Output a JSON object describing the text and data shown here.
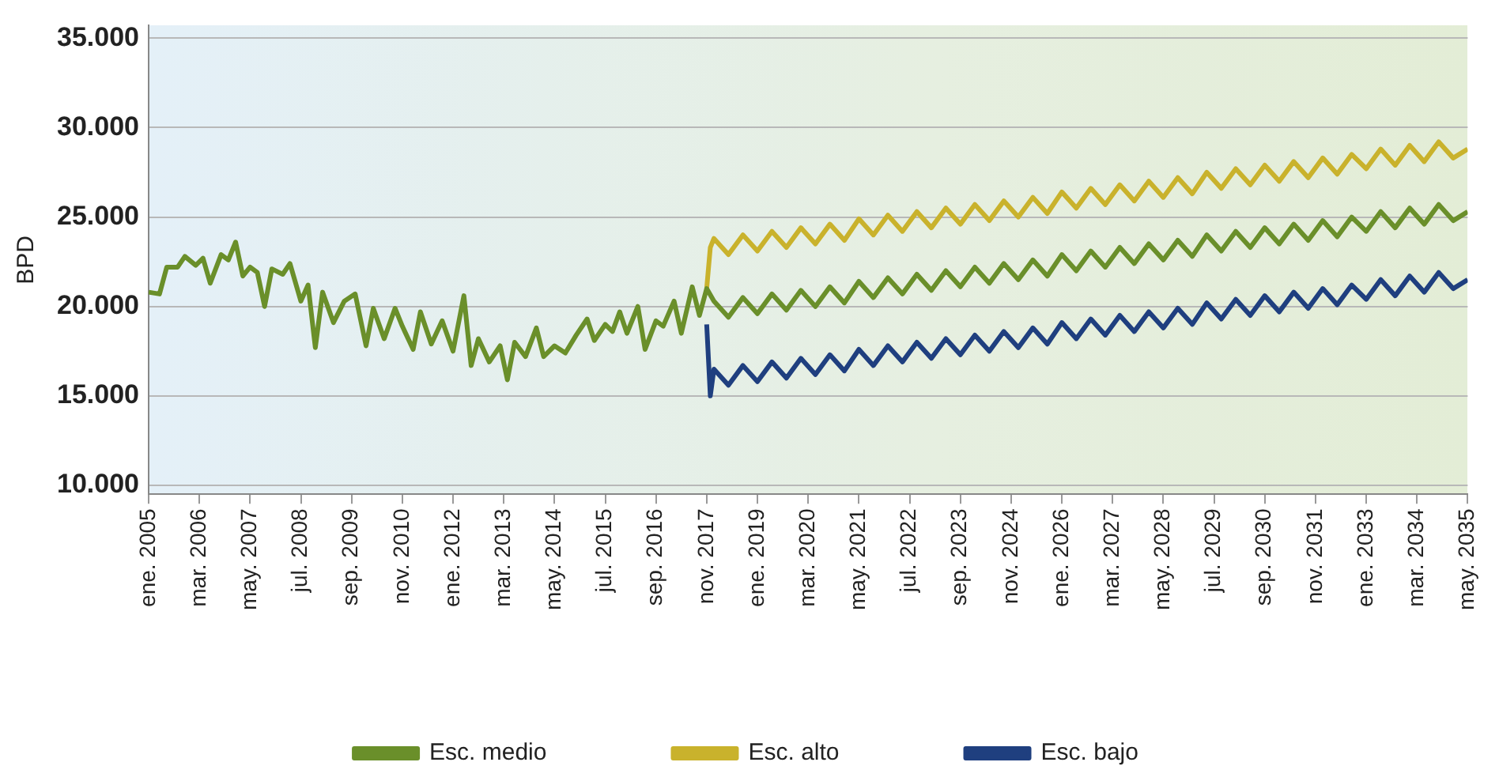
{
  "chart_data": {
    "type": "line",
    "ylabel": "BPD",
    "xlim": [
      "2005-01",
      "2035-05"
    ],
    "ylim": [
      9500,
      35700
    ],
    "yticks": [
      {
        "value": 10000,
        "label": "10.000"
      },
      {
        "value": 15000,
        "label": "15.000"
      },
      {
        "value": 20000,
        "label": "20.000"
      },
      {
        "value": 25000,
        "label": "25.000"
      },
      {
        "value": 30000,
        "label": "30.000"
      },
      {
        "value": 35000,
        "label": "35.000"
      }
    ],
    "xticks": [
      {
        "value": "2005-01",
        "label": "ene. 2005"
      },
      {
        "value": "2006-03",
        "label": "mar. 2006"
      },
      {
        "value": "2007-05",
        "label": "may. 2007"
      },
      {
        "value": "2008-07",
        "label": "jul. 2008"
      },
      {
        "value": "2009-09",
        "label": "sep. 2009"
      },
      {
        "value": "2010-11",
        "label": "nov. 2010"
      },
      {
        "value": "2012-01",
        "label": "ene. 2012"
      },
      {
        "value": "2013-03",
        "label": "mar. 2013"
      },
      {
        "value": "2014-05",
        "label": "may. 2014"
      },
      {
        "value": "2015-07",
        "label": "jul. 2015"
      },
      {
        "value": "2016-09",
        "label": "sep. 2016"
      },
      {
        "value": "2017-11",
        "label": "nov. 2017"
      },
      {
        "value": "2019-01",
        "label": "ene. 2019"
      },
      {
        "value": "2020-03",
        "label": "mar. 2020"
      },
      {
        "value": "2021-05",
        "label": "may. 2021"
      },
      {
        "value": "2022-07",
        "label": "jul. 2022"
      },
      {
        "value": "2023-09",
        "label": "sep. 2023"
      },
      {
        "value": "2024-11",
        "label": "nov. 2024"
      },
      {
        "value": "2026-01",
        "label": "ene. 2026"
      },
      {
        "value": "2027-03",
        "label": "mar. 2027"
      },
      {
        "value": "2028-05",
        "label": "may. 2028"
      },
      {
        "value": "2029-07",
        "label": "jul. 2029"
      },
      {
        "value": "2030-09",
        "label": "sep. 2030"
      },
      {
        "value": "2031-11",
        "label": "nov. 2031"
      },
      {
        "value": "2033-01",
        "label": "ene. 2033"
      },
      {
        "value": "2034-03",
        "label": "mar. 2034"
      },
      {
        "value": "2035-05",
        "label": "may. 2035"
      }
    ],
    "grid": "y",
    "legend": "bottom",
    "series": [
      {
        "name": "Esc. medio",
        "color": "#6a8f2a",
        "x": [
          "2005-01",
          "2005-04",
          "2005-06",
          "2005-09",
          "2005-11",
          "2006-02",
          "2006-04",
          "2006-06",
          "2006-09",
          "2006-11",
          "2007-01",
          "2007-03",
          "2007-05",
          "2007-07",
          "2007-09",
          "2007-11",
          "2008-02",
          "2008-04",
          "2008-07",
          "2008-09",
          "2008-11",
          "2009-01",
          "2009-04",
          "2009-07",
          "2009-10",
          "2010-01",
          "2010-03",
          "2010-06",
          "2010-09",
          "2010-11",
          "2011-02",
          "2011-04",
          "2011-07",
          "2011-10",
          "2012-01",
          "2012-04",
          "2012-06",
          "2012-08",
          "2012-11",
          "2013-02",
          "2013-04",
          "2013-06",
          "2013-09",
          "2013-12",
          "2014-02",
          "2014-05",
          "2014-08",
          "2014-11",
          "2015-02",
          "2015-04",
          "2015-07",
          "2015-09",
          "2015-11",
          "2016-01",
          "2016-04",
          "2016-06",
          "2016-09",
          "2016-11",
          "2017-02",
          "2017-04",
          "2017-07",
          "2017-09",
          "2017-11",
          "2018-01",
          "2018-05",
          "2018-09",
          "2019-01",
          "2019-05",
          "2019-09",
          "2020-01",
          "2020-05",
          "2020-09",
          "2021-01",
          "2021-05",
          "2021-09",
          "2022-01",
          "2022-05",
          "2022-09",
          "2023-01",
          "2023-05",
          "2023-09",
          "2024-01",
          "2024-05",
          "2024-09",
          "2025-01",
          "2025-05",
          "2025-09",
          "2026-01",
          "2026-05",
          "2026-09",
          "2027-01",
          "2027-05",
          "2027-09",
          "2028-01",
          "2028-05",
          "2028-09",
          "2029-01",
          "2029-05",
          "2029-09",
          "2030-01",
          "2030-05",
          "2030-09",
          "2031-01",
          "2031-05",
          "2031-09",
          "2032-01",
          "2032-05",
          "2032-09",
          "2033-01",
          "2033-05",
          "2033-09",
          "2034-01",
          "2034-05",
          "2034-09",
          "2035-01",
          "2035-05"
        ],
        "values": [
          20800,
          20700,
          22200,
          22200,
          22800,
          22300,
          22700,
          21300,
          22900,
          22600,
          23600,
          21700,
          22200,
          21900,
          20000,
          22100,
          21800,
          22400,
          20300,
          21200,
          17700,
          20800,
          19100,
          20300,
          20700,
          17800,
          19900,
          18200,
          19900,
          18900,
          17600,
          19700,
          17900,
          19200,
          17500,
          20600,
          16700,
          18200,
          16900,
          17800,
          15900,
          18000,
          17200,
          18800,
          17200,
          17800,
          17400,
          18400,
          19300,
          18100,
          19000,
          18600,
          19700,
          18500,
          20000,
          17600,
          19200,
          18900,
          20300,
          18500,
          21100,
          19500,
          21000,
          20300,
          19400,
          20500,
          19600,
          20700,
          19800,
          20900,
          20000,
          21100,
          20200,
          21400,
          20500,
          21600,
          20700,
          21800,
          20900,
          22000,
          21100,
          22200,
          21300,
          22400,
          21500,
          22600,
          21700,
          22900,
          22000,
          23100,
          22200,
          23300,
          22400,
          23500,
          22600,
          23700,
          22800,
          24000,
          23100,
          24200,
          23300,
          24400,
          23500,
          24600,
          23700,
          24800,
          23900,
          25000,
          24200,
          25300,
          24400,
          25500,
          24600,
          25700,
          24800,
          25300
        ]
      },
      {
        "name": "Esc. alto",
        "color": "#c9b22c",
        "x": [
          "2017-11",
          "2017-12",
          "2018-01",
          "2018-05",
          "2018-09",
          "2019-01",
          "2019-05",
          "2019-09",
          "2020-01",
          "2020-05",
          "2020-09",
          "2021-01",
          "2021-05",
          "2021-09",
          "2022-01",
          "2022-05",
          "2022-09",
          "2023-01",
          "2023-05",
          "2023-09",
          "2024-01",
          "2024-05",
          "2024-09",
          "2025-01",
          "2025-05",
          "2025-09",
          "2026-01",
          "2026-05",
          "2026-09",
          "2027-01",
          "2027-05",
          "2027-09",
          "2028-01",
          "2028-05",
          "2028-09",
          "2029-01",
          "2029-05",
          "2029-09",
          "2030-01",
          "2030-05",
          "2030-09",
          "2031-01",
          "2031-05",
          "2031-09",
          "2032-01",
          "2032-05",
          "2032-09",
          "2033-01",
          "2033-05",
          "2033-09",
          "2034-01",
          "2034-05",
          "2034-09",
          "2035-01",
          "2035-05"
        ],
        "values": [
          21000,
          23300,
          23800,
          22900,
          24000,
          23100,
          24200,
          23300,
          24400,
          23500,
          24600,
          23700,
          24900,
          24000,
          25100,
          24200,
          25300,
          24400,
          25500,
          24600,
          25700,
          24800,
          25900,
          25000,
          26100,
          25200,
          26400,
          25500,
          26600,
          25700,
          26800,
          25900,
          27000,
          26100,
          27200,
          26300,
          27500,
          26600,
          27700,
          26800,
          27900,
          27000,
          28100,
          27200,
          28300,
          27400,
          28500,
          27700,
          28800,
          27900,
          29000,
          28100,
          29200,
          28300,
          28800
        ]
      },
      {
        "name": "Esc. bajo",
        "color": "#1f3f7f",
        "x": [
          "2017-11",
          "2017-12",
          "2018-01",
          "2018-05",
          "2018-09",
          "2019-01",
          "2019-05",
          "2019-09",
          "2020-01",
          "2020-05",
          "2020-09",
          "2021-01",
          "2021-05",
          "2021-09",
          "2022-01",
          "2022-05",
          "2022-09",
          "2023-01",
          "2023-05",
          "2023-09",
          "2024-01",
          "2024-05",
          "2024-09",
          "2025-01",
          "2025-05",
          "2025-09",
          "2026-01",
          "2026-05",
          "2026-09",
          "2027-01",
          "2027-05",
          "2027-09",
          "2028-01",
          "2028-05",
          "2028-09",
          "2029-01",
          "2029-05",
          "2029-09",
          "2030-01",
          "2030-05",
          "2030-09",
          "2031-01",
          "2031-05",
          "2031-09",
          "2032-01",
          "2032-05",
          "2032-09",
          "2033-01",
          "2033-05",
          "2033-09",
          "2034-01",
          "2034-05",
          "2034-09",
          "2035-01",
          "2035-05"
        ],
        "values": [
          19000,
          15000,
          16500,
          15600,
          16700,
          15800,
          16900,
          16000,
          17100,
          16200,
          17300,
          16400,
          17600,
          16700,
          17800,
          16900,
          18000,
          17100,
          18200,
          17300,
          18400,
          17500,
          18600,
          17700,
          18800,
          17900,
          19100,
          18200,
          19300,
          18400,
          19500,
          18600,
          19700,
          18800,
          19900,
          19000,
          20200,
          19300,
          20400,
          19500,
          20600,
          19700,
          20800,
          19900,
          21000,
          20100,
          21200,
          20400,
          21500,
          20600,
          21700,
          20800,
          21900,
          21000,
          21500
        ]
      }
    ]
  }
}
